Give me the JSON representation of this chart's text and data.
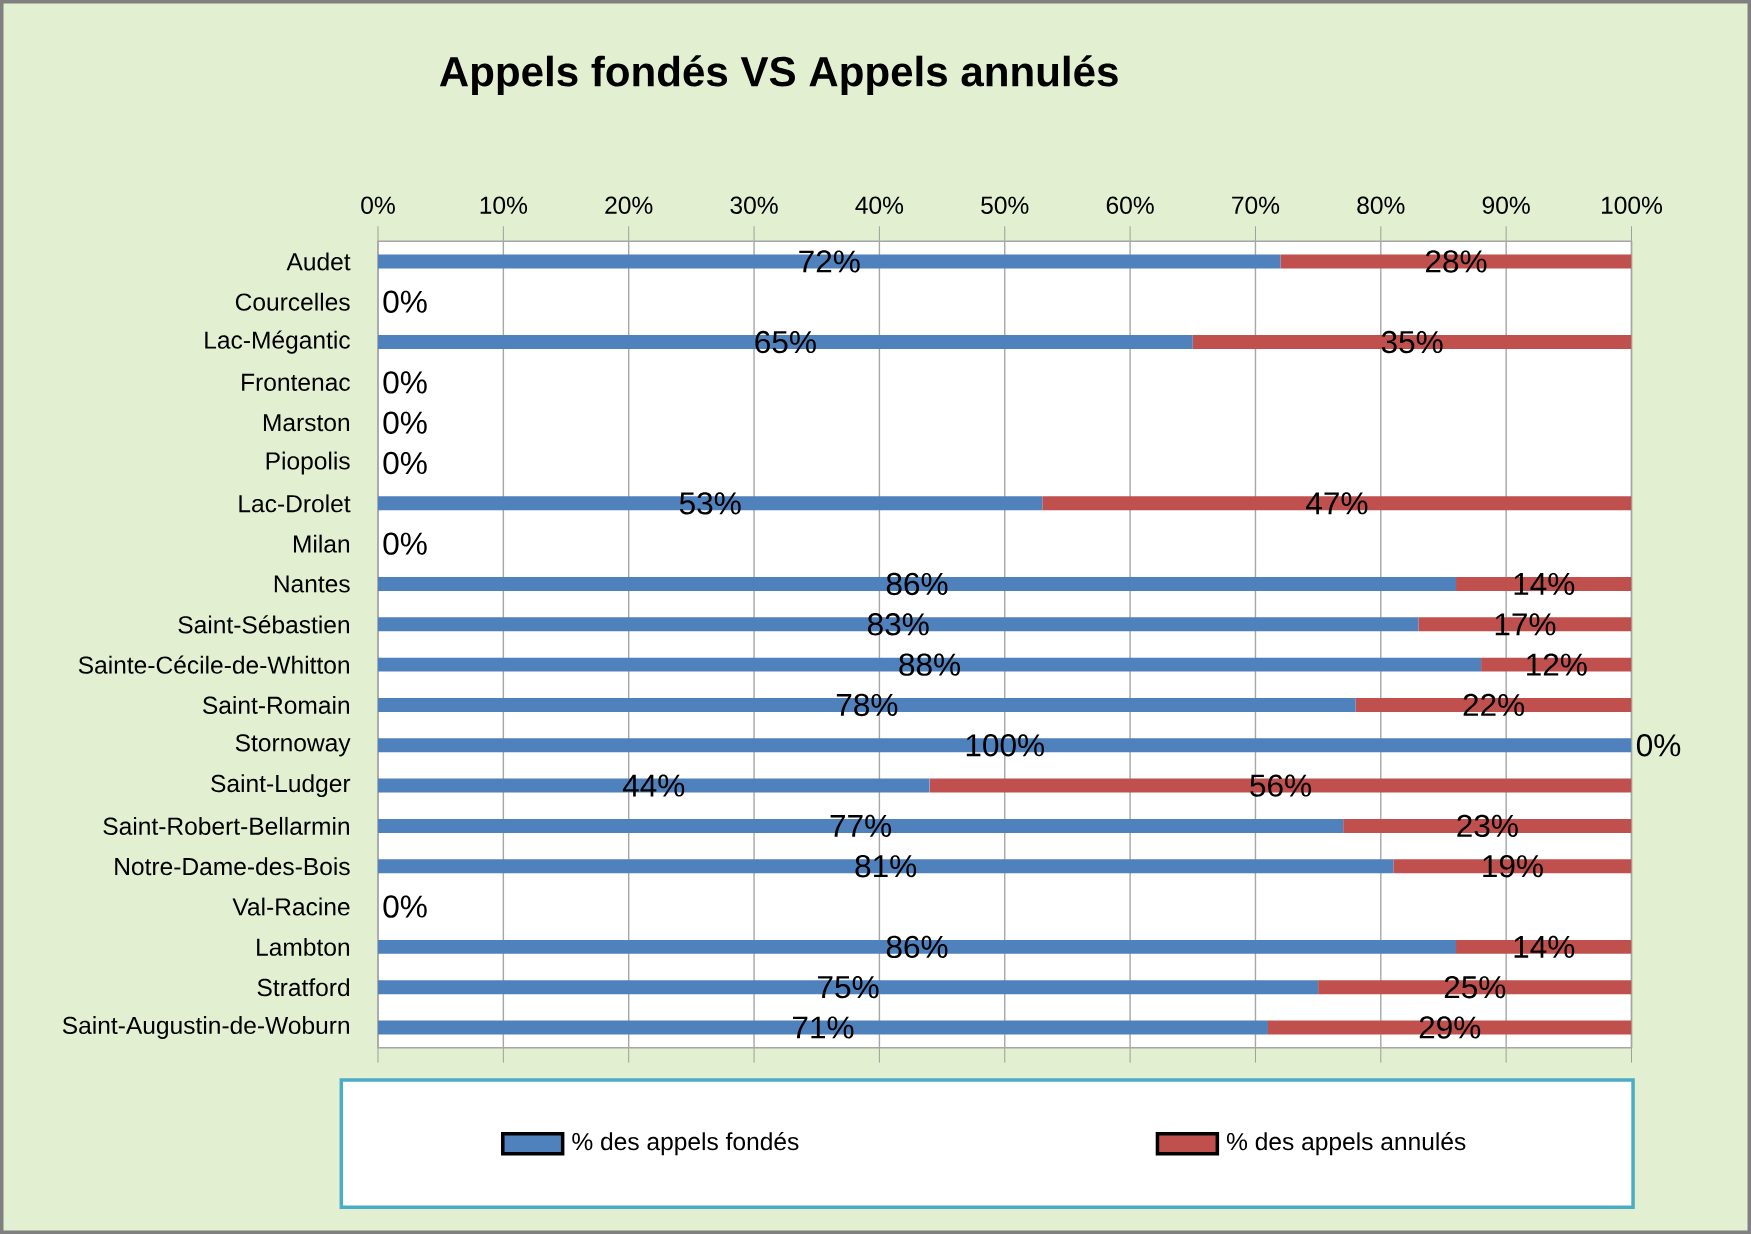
{
  "chart_data": {
    "type": "bar",
    "orientation": "horizontal",
    "stacked": true,
    "title": "Appels fondés VS Appels annulés",
    "categories": [
      "Audet",
      "Courcelles",
      "Lac-Mégantic",
      "Frontenac",
      "Marston",
      "Piopolis",
      "Lac-Drolet",
      "Milan",
      "Nantes",
      "Saint-Sébastien",
      "Sainte-Cécile-de-Whitton",
      "Saint-Romain",
      "Stornoway",
      "Saint-Ludger",
      "Saint-Robert-Bellarmin",
      "Notre-Dame-des-Bois",
      "Val-Racine",
      "Lambton",
      "Stratford",
      "Saint-Augustin-de-Woburn"
    ],
    "series": [
      {
        "name": "% des appels fondés",
        "color": "#4f81bd",
        "values": [
          72,
          0,
          65,
          0,
          0,
          0,
          53,
          0,
          86,
          83,
          88,
          78,
          100,
          44,
          77,
          81,
          0,
          86,
          75,
          71
        ],
        "value_labels": [
          "72%",
          "0%",
          "65%",
          "0%",
          "0%",
          "0%",
          "53%",
          "0%",
          "86%",
          "83%",
          "88%",
          "78%",
          "100%",
          "44%",
          "77%",
          "81%",
          "0%",
          "86%",
          "75%",
          "71%"
        ]
      },
      {
        "name": "% des appels annulés",
        "color": "#c0504d",
        "values": [
          28,
          0,
          35,
          0,
          0,
          0,
          47,
          0,
          14,
          17,
          12,
          22,
          0,
          56,
          23,
          19,
          0,
          14,
          25,
          29
        ],
        "value_labels": [
          "28%",
          null,
          "35%",
          null,
          null,
          null,
          "47%",
          null,
          "14%",
          "17%",
          "12%",
          "22%",
          "0%",
          "56%",
          "23%",
          "19%",
          null,
          "14%",
          "25%",
          "29%"
        ]
      }
    ],
    "xlim": [
      0,
      100
    ],
    "xticks": [
      {
        "value": 0,
        "label": "0%"
      },
      {
        "value": 10,
        "label": "10%"
      },
      {
        "value": 20,
        "label": "20%"
      },
      {
        "value": 30,
        "label": "30%"
      },
      {
        "value": 40,
        "label": "40%"
      },
      {
        "value": 50,
        "label": "50%"
      },
      {
        "value": 60,
        "label": "60%"
      },
      {
        "value": 70,
        "label": "70%"
      },
      {
        "value": 80,
        "label": "80%"
      },
      {
        "value": 90,
        "label": "90%"
      },
      {
        "value": 100,
        "label": "100%"
      }
    ],
    "grid": "x",
    "legend": "bottom"
  }
}
